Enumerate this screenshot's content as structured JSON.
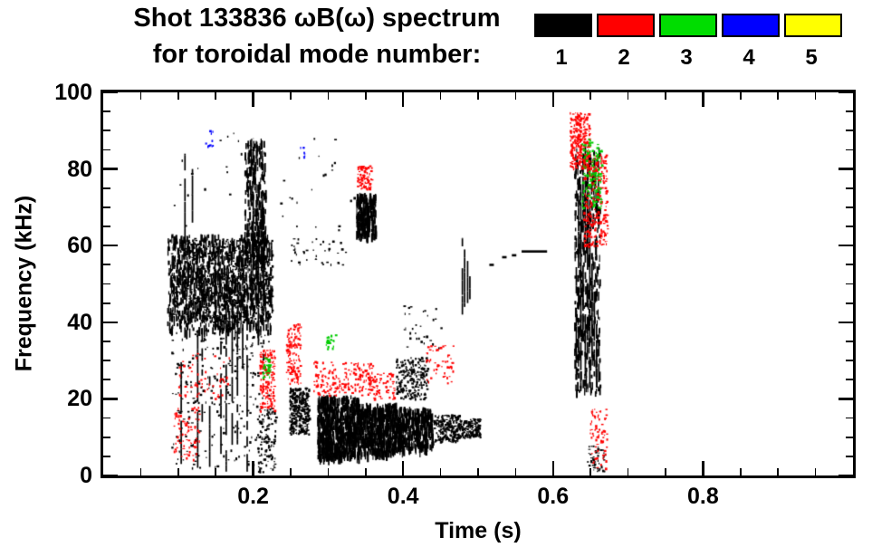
{
  "chart_data": {
    "type": "scatter",
    "title": "Shot 133836 ωB(ω) spectrum",
    "subtitle": "for toroidal mode number:",
    "xlabel": "Time (s)",
    "ylabel": "Frequency (kHz)",
    "xlim": [
      0.0,
      1.0
    ],
    "ylim": [
      0,
      100
    ],
    "xticks": [
      {
        "v": 0.2,
        "label": "0.2"
      },
      {
        "v": 0.4,
        "label": "0.4"
      },
      {
        "v": 0.6,
        "label": "0.6"
      },
      {
        "v": 0.8,
        "label": "0.8"
      }
    ],
    "yticks": [
      {
        "v": 0,
        "label": "0"
      },
      {
        "v": 20,
        "label": "20"
      },
      {
        "v": 40,
        "label": "40"
      },
      {
        "v": 60,
        "label": "60"
      },
      {
        "v": 80,
        "label": "80"
      },
      {
        "v": 100,
        "label": "100"
      }
    ],
    "x_minor_step": 0.05,
    "y_minor_step": 5,
    "legend": [
      {
        "label": "1",
        "color": "#000000"
      },
      {
        "label": "2",
        "color": "#ff0000"
      },
      {
        "label": "3",
        "color": "#00dd00"
      },
      {
        "label": "4",
        "color": "#0000ff"
      },
      {
        "label": "5",
        "color": "#ffff00"
      }
    ],
    "mode_colors": {
      "1": "#000000",
      "2": "#ff0000",
      "3": "#00cc00",
      "4": "#0000ff",
      "5": "#ffff00"
    },
    "clusters": [
      {
        "mode": 1,
        "kind": "dashes",
        "t": [
          0.085,
          0.225
        ],
        "f": [
          38,
          63
        ],
        "n": 900
      },
      {
        "mode": 1,
        "kind": "dots",
        "t": [
          0.09,
          0.225
        ],
        "f": [
          40,
          62
        ],
        "n": 800
      },
      {
        "mode": 1,
        "kind": "dashes",
        "t": [
          0.188,
          0.216
        ],
        "f": [
          55,
          88
        ],
        "n": 260
      },
      {
        "mode": 1,
        "kind": "vlines",
        "lines": [
          [
            0.103,
            3,
            32
          ],
          [
            0.108,
            36,
            84
          ],
          [
            0.118,
            66,
            80
          ],
          [
            0.125,
            2,
            38
          ],
          [
            0.131,
            14,
            46
          ],
          [
            0.141,
            1,
            34
          ],
          [
            0.148,
            34,
            56
          ],
          [
            0.156,
            4,
            36
          ],
          [
            0.163,
            1,
            46
          ],
          [
            0.171,
            8,
            62
          ],
          [
            0.178,
            2,
            52
          ],
          [
            0.185,
            28,
            66
          ],
          [
            0.191,
            1,
            42
          ],
          [
            0.199,
            54,
            88
          ],
          [
            0.206,
            34,
            76
          ],
          [
            0.213,
            30,
            70
          ]
        ]
      },
      {
        "mode": 1,
        "kind": "dots",
        "t": [
          0.09,
          0.22
        ],
        "f": [
          2,
          38
        ],
        "n": 260
      },
      {
        "mode": 1,
        "kind": "dots",
        "t": [
          0.205,
          0.23
        ],
        "f": [
          1,
          18
        ],
        "n": 110
      },
      {
        "mode": 1,
        "kind": "dots",
        "t": [
          0.248,
          0.274
        ],
        "f": [
          11,
          23
        ],
        "n": 320
      },
      {
        "mode": 1,
        "kind": "dashes",
        "t": [
          0.285,
          0.34
        ],
        "f": [
          5,
          21
        ],
        "n": 700
      },
      {
        "mode": 1,
        "kind": "dashes",
        "t": [
          0.34,
          0.39
        ],
        "f": [
          6,
          19
        ],
        "n": 520
      },
      {
        "mode": 1,
        "kind": "dashes",
        "t": [
          0.39,
          0.44
        ],
        "f": [
          7,
          18
        ],
        "n": 380
      },
      {
        "mode": 1,
        "kind": "dots",
        "t": [
          0.44,
          0.475
        ],
        "f": [
          9,
          16
        ],
        "n": 240
      },
      {
        "mode": 1,
        "kind": "dots",
        "t": [
          0.475,
          0.502
        ],
        "f": [
          10,
          15
        ],
        "n": 150
      },
      {
        "mode": 1,
        "kind": "dashes",
        "t": [
          0.337,
          0.363
        ],
        "f": [
          63,
          74
        ],
        "n": 240
      },
      {
        "mode": 1,
        "kind": "dots",
        "t": [
          0.39,
          0.432
        ],
        "f": [
          20,
          31
        ],
        "n": 230
      },
      {
        "mode": 1,
        "kind": "vlines",
        "lines": [
          [
            0.478,
            42,
            62
          ],
          [
            0.481,
            44,
            59
          ],
          [
            0.485,
            45,
            56
          ],
          [
            0.488,
            46,
            52
          ]
        ]
      },
      {
        "mode": 1,
        "kind": "hlines",
        "lines": [
          [
            0.515,
            0.521,
            55
          ],
          [
            0.532,
            0.538,
            57
          ],
          [
            0.545,
            0.551,
            57.5
          ],
          [
            0.558,
            0.592,
            58.5
          ]
        ]
      },
      {
        "mode": 1,
        "kind": "vlines",
        "lines": [
          [
            0.63,
            25,
            62
          ],
          [
            0.633,
            32,
            72
          ],
          [
            0.636,
            22,
            78
          ],
          [
            0.639,
            36,
            84
          ],
          [
            0.642,
            26,
            87
          ],
          [
            0.645,
            32,
            80
          ],
          [
            0.648,
            24,
            72
          ],
          [
            0.651,
            28,
            62
          ],
          [
            0.654,
            22,
            48
          ],
          [
            0.657,
            24,
            40
          ],
          [
            0.66,
            25,
            35
          ]
        ]
      },
      {
        "mode": 1,
        "kind": "dashes",
        "t": [
          0.628,
          0.662
        ],
        "f": [
          22,
          86
        ],
        "n": 380
      },
      {
        "mode": 1,
        "kind": "dots",
        "t": [
          0.09,
          0.34
        ],
        "f": [
          64,
          92
        ],
        "n": 45
      },
      {
        "mode": 1,
        "kind": "dots",
        "t": [
          0.25,
          0.33
        ],
        "f": [
          55,
          62
        ],
        "n": 40
      },
      {
        "mode": 1,
        "kind": "dots",
        "t": [
          0.4,
          0.45
        ],
        "f": [
          33,
          45
        ],
        "n": 30
      },
      {
        "mode": 1,
        "kind": "dots",
        "t": [
          0.645,
          0.668
        ],
        "f": [
          1,
          8
        ],
        "n": 50
      },
      {
        "mode": 2,
        "kind": "dots",
        "t": [
          0.093,
          0.128
        ],
        "f": [
          4,
          18
        ],
        "n": 80
      },
      {
        "mode": 2,
        "kind": "dots",
        "t": [
          0.1,
          0.168
        ],
        "f": [
          20,
          32
        ],
        "n": 60
      },
      {
        "mode": 2,
        "kind": "dots",
        "t": [
          0.208,
          0.228
        ],
        "f": [
          17,
          33
        ],
        "n": 150
      },
      {
        "mode": 2,
        "kind": "dots",
        "t": [
          0.243,
          0.263
        ],
        "f": [
          24,
          40
        ],
        "n": 130
      },
      {
        "mode": 2,
        "kind": "dots",
        "t": [
          0.28,
          0.36
        ],
        "f": [
          21,
          30
        ],
        "n": 200
      },
      {
        "mode": 2,
        "kind": "dots",
        "t": [
          0.338,
          0.358
        ],
        "f": [
          75,
          81
        ],
        "n": 80
      },
      {
        "mode": 2,
        "kind": "dots",
        "t": [
          0.36,
          0.388
        ],
        "f": [
          20,
          27
        ],
        "n": 60
      },
      {
        "mode": 2,
        "kind": "dots",
        "t": [
          0.43,
          0.468
        ],
        "f": [
          24,
          34
        ],
        "n": 50
      },
      {
        "mode": 2,
        "kind": "dots",
        "t": [
          0.622,
          0.648
        ],
        "f": [
          80,
          95
        ],
        "n": 260
      },
      {
        "mode": 2,
        "kind": "dots",
        "t": [
          0.64,
          0.672
        ],
        "f": [
          60,
          84
        ],
        "n": 280
      },
      {
        "mode": 2,
        "kind": "dots",
        "t": [
          0.648,
          0.672
        ],
        "f": [
          2,
          18
        ],
        "n": 70
      },
      {
        "mode": 3,
        "kind": "dots",
        "t": [
          0.212,
          0.223
        ],
        "f": [
          25,
          31
        ],
        "n": 35
      },
      {
        "mode": 3,
        "kind": "dots",
        "t": [
          0.296,
          0.31
        ],
        "f": [
          33,
          37
        ],
        "n": 22
      },
      {
        "mode": 3,
        "kind": "dots",
        "t": [
          0.638,
          0.664
        ],
        "f": [
          70,
          88
        ],
        "n": 150
      },
      {
        "mode": 4,
        "kind": "dots",
        "t": [
          0.135,
          0.146
        ],
        "f": [
          86,
          91
        ],
        "n": 10
      },
      {
        "mode": 4,
        "kind": "dots",
        "t": [
          0.262,
          0.269
        ],
        "f": [
          83,
          87
        ],
        "n": 8
      }
    ]
  }
}
